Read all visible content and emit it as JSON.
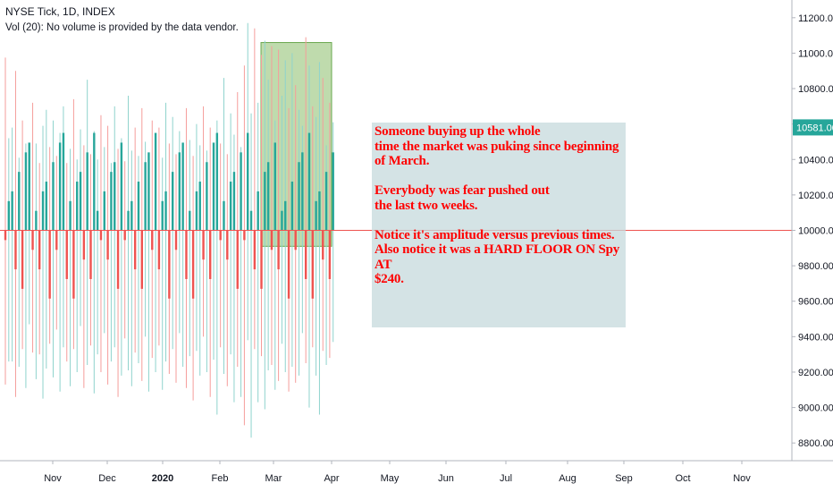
{
  "header": {
    "line1": "NYSE Tick, 1D, INDEX",
    "line2": "Vol (20): No volume is provided by the data vendor."
  },
  "note": {
    "paragraphs": [
      "Someone buying up the whole\ntime the market was puking since beginning\nof March.",
      "Everybody was fear pushed out\nthe last two weeks.",
      "Notice it's amplitude versus previous times.\nAlso notice it was a HARD FLOOR ON Spy AT\n$240."
    ]
  },
  "colors": {
    "up": "#26a69a",
    "up_light": "#8fd3cd",
    "down": "#ef5350",
    "down_light": "#f59d9b",
    "highlight_fill": "#8bbd6a",
    "note_fill": "#c5d9dc",
    "price_badge": "#26a69a",
    "baseline": "#ef5350",
    "axis_text": "#131722"
  },
  "chart_data": {
    "type": "bar",
    "description_of_marks": "daily NYSE TICK high/low range bars anchored at the 10000 base",
    "ylim": [
      8700,
      11300
    ],
    "y_ticks": [
      "11200.00",
      "11000.00",
      "10800.00",
      "10600.00",
      "10400.00",
      "10200.00",
      "10000.00",
      "9800.00",
      "9600.00",
      "9400.00",
      "9200.00",
      "9000.00",
      "8800.00"
    ],
    "x_ticks": [
      "Nov",
      "Dec",
      "2020",
      "Feb",
      "Mar",
      "Apr",
      "May",
      "Jun",
      "Jul",
      "Aug",
      "Sep",
      "Oct",
      "Nov"
    ],
    "last_price": "10581.00",
    "base_level": 10000,
    "highlight_range": {
      "from": "Mar",
      "to": "Apr",
      "y_from": 9910,
      "y_to": 11060
    },
    "series": [
      {
        "values": [
          [
            10975,
            9130
          ],
          [
            10520,
            9260
          ],
          [
            10580,
            9260
          ],
          [
            10900,
            9060
          ],
          [
            10410,
            9230
          ],
          [
            10620,
            9330
          ],
          [
            10490,
            9110
          ],
          [
            10400,
            9470
          ],
          [
            10720,
            9310
          ],
          [
            10490,
            9160
          ],
          [
            10380,
            9300
          ],
          [
            10590,
            9050
          ],
          [
            10680,
            9220
          ],
          [
            10470,
            9360
          ],
          [
            10620,
            9170
          ],
          [
            10420,
            9440
          ],
          [
            10550,
            9090
          ],
          [
            10700,
            9340
          ],
          [
            10380,
            9260
          ],
          [
            10460,
            9120
          ],
          [
            10740,
            9330
          ],
          [
            10400,
            9200
          ],
          [
            10570,
            9460
          ],
          [
            10480,
            9110
          ],
          [
            10850,
            9240
          ],
          [
            10430,
            9350
          ],
          [
            10560,
            9080
          ],
          [
            10400,
            9300
          ],
          [
            10650,
            9200
          ],
          [
            10470,
            9420
          ],
          [
            10590,
            9130
          ],
          [
            10380,
            9260
          ],
          [
            10700,
            9340
          ],
          [
            10460,
            9060
          ],
          [
            10520,
            9180
          ],
          [
            10390,
            9390
          ],
          [
            10760,
            9210
          ],
          [
            10450,
            9120
          ],
          [
            10580,
            9310
          ],
          [
            10420,
            9250
          ],
          [
            10690,
            9150
          ],
          [
            10500,
            9400
          ],
          [
            10400,
            9090
          ],
          [
            10620,
            9280
          ],
          [
            10470,
            9200
          ],
          [
            10580,
            9350
          ],
          [
            10410,
            9100
          ],
          [
            10720,
            9260
          ],
          [
            10490,
            9190
          ],
          [
            10640,
            9330
          ],
          [
            10430,
            9140
          ],
          [
            10560,
            9420
          ],
          [
            10380,
            9230
          ],
          [
            10690,
            9110
          ],
          [
            10510,
            9290
          ],
          [
            10420,
            9040
          ],
          [
            10600,
            9320
          ],
          [
            10480,
            9180
          ],
          [
            10700,
            9400
          ],
          [
            10450,
            9200
          ],
          [
            10580,
            9060
          ],
          [
            10400,
            9270
          ],
          [
            10620,
            8960
          ],
          [
            10490,
            9340
          ],
          [
            10860,
            9190
          ],
          [
            10430,
            9120
          ],
          [
            10660,
            9300
          ],
          [
            10540,
            9030
          ],
          [
            10780,
            9230
          ],
          [
            10470,
            9060
          ],
          [
            10930,
            8900
          ],
          [
            11170,
            9380
          ],
          [
            10660,
            8830
          ],
          [
            11140,
            9330
          ],
          [
            10720,
            9030
          ],
          [
            10990,
            9290
          ],
          [
            11070,
            8990
          ],
          [
            10850,
            9210
          ],
          [
            11040,
            9240
          ],
          [
            10620,
            9100
          ],
          [
            11020,
            9150
          ],
          [
            10760,
            9360
          ],
          [
            10960,
            9200
          ],
          [
            10690,
            9090
          ],
          [
            11000,
            9230
          ],
          [
            10820,
            9140
          ],
          [
            10680,
            9180
          ],
          [
            10590,
            9420
          ],
          [
            11090,
            9250
          ],
          [
            10930,
            9000
          ],
          [
            10700,
            9340
          ],
          [
            10640,
            9180
          ],
          [
            10950,
            8960
          ],
          [
            10860,
            9320
          ],
          [
            10480,
            9240
          ],
          [
            10720,
            9280
          ],
          [
            10610,
            9370
          ]
        ]
      }
    ],
    "bar_count": 97,
    "grid": false,
    "legend": "none"
  }
}
